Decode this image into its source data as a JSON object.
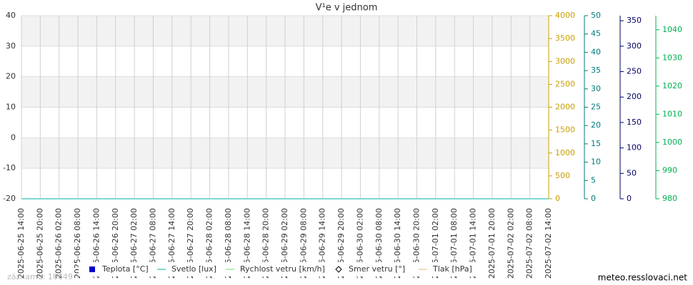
{
  "chart_data": {
    "type": "line",
    "title": "V¹e v jednom",
    "categories": [
      "2025-06-25 14:00",
      "2025-06-25 20:00",
      "2025-06-26 02:00",
      "2025-06-26 08:00",
      "2025-06-26 14:00",
      "2025-06-26 20:00",
      "2025-06-27 02:00",
      "2025-06-27 08:00",
      "2025-06-27 14:00",
      "2025-06-27 20:00",
      "2025-06-28 02:00",
      "2025-06-28 08:00",
      "2025-06-28 14:00",
      "2025-06-28 20:00",
      "2025-06-29 02:00",
      "2025-06-29 08:00",
      "2025-06-29 14:00",
      "2025-06-29 20:00",
      "2025-06-30 02:00",
      "2025-06-30 08:00",
      "2025-06-30 14:00",
      "2025-06-30 20:00",
      "2025-07-01 02:00",
      "2025-07-01 08:00",
      "2025-07-01 14:00",
      "2025-07-01 20:00",
      "2025-07-02 02:00",
      "2025-07-02 08:00",
      "2025-07-02 14:00"
    ],
    "ylim": [
      -20,
      40
    ],
    "yticks": [
      -20,
      -10,
      0,
      10,
      20,
      30,
      40
    ],
    "grid": true,
    "extra_axes": [
      {
        "id": "y2",
        "lim": [
          0,
          4000
        ],
        "ticks": [
          0,
          500,
          1000,
          1500,
          2000,
          2500,
          3000,
          3500,
          4000
        ],
        "color": "#c9a000"
      },
      {
        "id": "y3",
        "lim": [
          0,
          50
        ],
        "ticks": [
          0,
          5,
          10,
          15,
          20,
          25,
          30,
          35,
          40,
          45,
          50
        ],
        "color": "#007b7b"
      },
      {
        "id": "y4",
        "lim": [
          0,
          360
        ],
        "ticks": [
          0,
          50,
          100,
          150,
          200,
          250,
          300,
          350
        ],
        "color": "#000066"
      },
      {
        "id": "y5",
        "lim": [
          980,
          1045
        ],
        "ticks": [
          980,
          990,
          1000,
          1010,
          1020,
          1030,
          1040
        ],
        "color": "#00b050"
      }
    ],
    "series": [
      {
        "name": "Teplota [°C]",
        "color": "#0000cc",
        "marker": "square",
        "axis": "y",
        "values": [
          null,
          null,
          null,
          null,
          null,
          null,
          null,
          null,
          null,
          null,
          null,
          null,
          null,
          null,
          null,
          null,
          null,
          null,
          null,
          null,
          null,
          null,
          null,
          null,
          null,
          null,
          null,
          null,
          null
        ]
      },
      {
        "name": "Svetlo [lux]",
        "color": "#7fd8d0",
        "marker": "line",
        "axis": "y2",
        "values": [
          0,
          0,
          0,
          0,
          0,
          0,
          0,
          0,
          0,
          0,
          0,
          0,
          0,
          0,
          0,
          0,
          0,
          0,
          0,
          0,
          0,
          0,
          0,
          0,
          0,
          0,
          0,
          0,
          0
        ]
      },
      {
        "name": "Rychlost vetru [km/h]",
        "color": "#b0eeb8",
        "marker": "line",
        "axis": "y3",
        "values": [
          null,
          null,
          null,
          null,
          null,
          null,
          null,
          null,
          null,
          null,
          null,
          null,
          null,
          null,
          null,
          null,
          null,
          null,
          null,
          null,
          null,
          null,
          null,
          null,
          null,
          null,
          null,
          null,
          null
        ]
      },
      {
        "name": "Smer vetru [°]",
        "color": "#000000",
        "marker": "diamond",
        "axis": "y4",
        "values": [
          null,
          null,
          null,
          null,
          null,
          null,
          null,
          null,
          null,
          null,
          null,
          null,
          null,
          null,
          null,
          null,
          null,
          null,
          null,
          null,
          null,
          null,
          null,
          null,
          null,
          null,
          null,
          null,
          null
        ]
      },
      {
        "name": "Tlak [hPa]",
        "color": "#f0dcc0",
        "marker": "line",
        "axis": "y5",
        "values": [
          null,
          null,
          null,
          null,
          null,
          null,
          null,
          null,
          null,
          null,
          null,
          null,
          null,
          null,
          null,
          null,
          null,
          null,
          null,
          null,
          null,
          null,
          null,
          null,
          null,
          null,
          null,
          null,
          null
        ]
      }
    ]
  },
  "footer": {
    "records": "záznamů: 10649",
    "site": "meteo.resslovaci.net"
  }
}
